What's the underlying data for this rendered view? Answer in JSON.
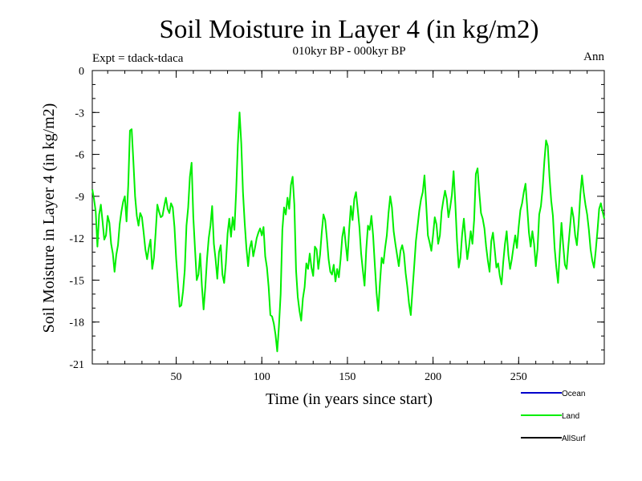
{
  "chart_data": {
    "type": "line",
    "title": "Soil Moisture in Layer 4 (in kg/m2)",
    "subtitle": "010kyr BP - 000kyr BP",
    "experiment": "Expt = tdack-tdaca",
    "season": "Ann",
    "xlabel": "Time (in years since start)",
    "ylabel": "Soil Moisture in Layer 4 (in kg/m2)",
    "xlim": [
      1,
      300
    ],
    "ylim": [
      -21,
      0
    ],
    "xticks": [
      50,
      100,
      150,
      200,
      250
    ],
    "yticks": [
      0,
      -3,
      -6,
      -9,
      -12,
      -15,
      -18,
      -21
    ],
    "legend": [
      {
        "label": "Ocean",
        "color": "#0000cc"
      },
      {
        "label": "Land",
        "color": "#00ee00"
      },
      {
        "label": "AllSurf",
        "color": "#000000"
      }
    ],
    "series": [
      {
        "name": "Land",
        "color": "#00ee00",
        "values": [
          -8.5,
          -9.2,
          -10.1,
          -12.6,
          -10.3,
          -9.6,
          -10.8,
          -12.1,
          -11.8,
          -10.4,
          -10.9,
          -12.4,
          -13.1,
          -14.4,
          -13.2,
          -12.5,
          -11.0,
          -10.1,
          -9.4,
          -9.0,
          -10.8,
          -8.2,
          -4.3,
          -4.2,
          -6.5,
          -9.0,
          -10.4,
          -11.1,
          -10.2,
          -10.5,
          -11.6,
          -12.8,
          -13.5,
          -12.7,
          -12.1,
          -14.2,
          -13.4,
          -11.6,
          -9.6,
          -10.1,
          -10.5,
          -10.4,
          -9.7,
          -9.1,
          -9.9,
          -10.2,
          -9.5,
          -9.8,
          -11.2,
          -13.5,
          -15.2,
          -16.9,
          -16.8,
          -15.8,
          -14.3,
          -11.1,
          -9.8,
          -7.6,
          -6.6,
          -10.5,
          -12.8,
          -15.0,
          -14.6,
          -13.1,
          -15.4,
          -17.1,
          -15.5,
          -13.5,
          -12.0,
          -11.1,
          -9.7,
          -12.4,
          -13.5,
          -14.9,
          -13.0,
          -12.5,
          -14.6,
          -15.2,
          -13.8,
          -11.7,
          -10.6,
          -11.9,
          -10.5,
          -11.4,
          -8.7,
          -5.3,
          -3.0,
          -5.2,
          -8.7,
          -10.9,
          -12.7,
          -14.0,
          -12.7,
          -12.2,
          -13.3,
          -12.7,
          -12.0,
          -11.6,
          -11.3,
          -11.8,
          -11.2,
          -13.3,
          -14.1,
          -15.5,
          -17.5,
          -17.6,
          -18.1,
          -18.9,
          -20.1,
          -18.3,
          -16.0,
          -11.4,
          -9.8,
          -10.3,
          -9.1,
          -9.9,
          -8.2,
          -7.6,
          -9.6,
          -14.3,
          -16.2,
          -17.2,
          -17.9,
          -16.3,
          -15.5,
          -13.8,
          -14.2,
          -13.1,
          -14.1,
          -14.7,
          -12.6,
          -12.8,
          -14.2,
          -13.2,
          -11.6,
          -10.3,
          -10.7,
          -12.0,
          -13.5,
          -14.4,
          -14.6,
          -13.9,
          -15.1,
          -14.2,
          -14.8,
          -13.5,
          -11.9,
          -11.2,
          -12.4,
          -13.6,
          -11.4,
          -9.7,
          -10.7,
          -9.2,
          -8.7,
          -9.9,
          -11.2,
          -13.1,
          -14.3,
          -15.4,
          -12.8,
          -11.1,
          -11.4,
          -10.4,
          -11.8,
          -13.9,
          -15.9,
          -17.2,
          -15.2,
          -13.4,
          -13.8,
          -12.7,
          -11.8,
          -10.2,
          -9.0,
          -9.8,
          -11.5,
          -12.4,
          -13.2,
          -14.0,
          -12.9,
          -12.5,
          -13.1,
          -14.5,
          -15.5,
          -16.7,
          -17.5,
          -15.7,
          -14.0,
          -12.2,
          -11.1,
          -10.0,
          -9.2,
          -8.7,
          -7.5,
          -9.6,
          -11.8,
          -12.3,
          -12.9,
          -11.8,
          -10.5,
          -11.0,
          -12.4,
          -11.8,
          -10.1,
          -9.3,
          -8.6,
          -9.2,
          -10.5,
          -9.8,
          -8.9,
          -7.2,
          -9.5,
          -12.2,
          -14.1,
          -13.4,
          -11.7,
          -10.6,
          -12.1,
          -13.5,
          -12.6,
          -11.5,
          -12.4,
          -10.7,
          -7.4,
          -7.0,
          -8.7,
          -10.2,
          -10.6,
          -11.3,
          -12.6,
          -13.6,
          -14.4,
          -12.2,
          -11.6,
          -12.8,
          -14.1,
          -13.8,
          -14.7,
          -15.3,
          -13.7,
          -12.4,
          -11.5,
          -13.2,
          -14.2,
          -13.5,
          -12.6,
          -11.8,
          -12.7,
          -11.2,
          -10.0,
          -9.5,
          -8.7,
          -8.1,
          -9.8,
          -11.6,
          -12.6,
          -11.5,
          -12.4,
          -14.0,
          -12.8,
          -10.3,
          -9.7,
          -8.4,
          -6.5,
          -5.0,
          -5.4,
          -7.6,
          -9.3,
          -10.4,
          -12.7,
          -14.1,
          -15.2,
          -13.0,
          -10.9,
          -12.5,
          -13.9,
          -14.2,
          -12.6,
          -11.2,
          -9.8,
          -10.5,
          -11.8,
          -12.5,
          -11.0,
          -8.9,
          -7.5,
          -8.7,
          -9.6,
          -10.3,
          -11.4,
          -12.8,
          -13.6,
          -14.1,
          -12.9,
          -11.5,
          -9.9,
          -9.5,
          -10.1,
          -10.6
        ]
      }
    ]
  }
}
